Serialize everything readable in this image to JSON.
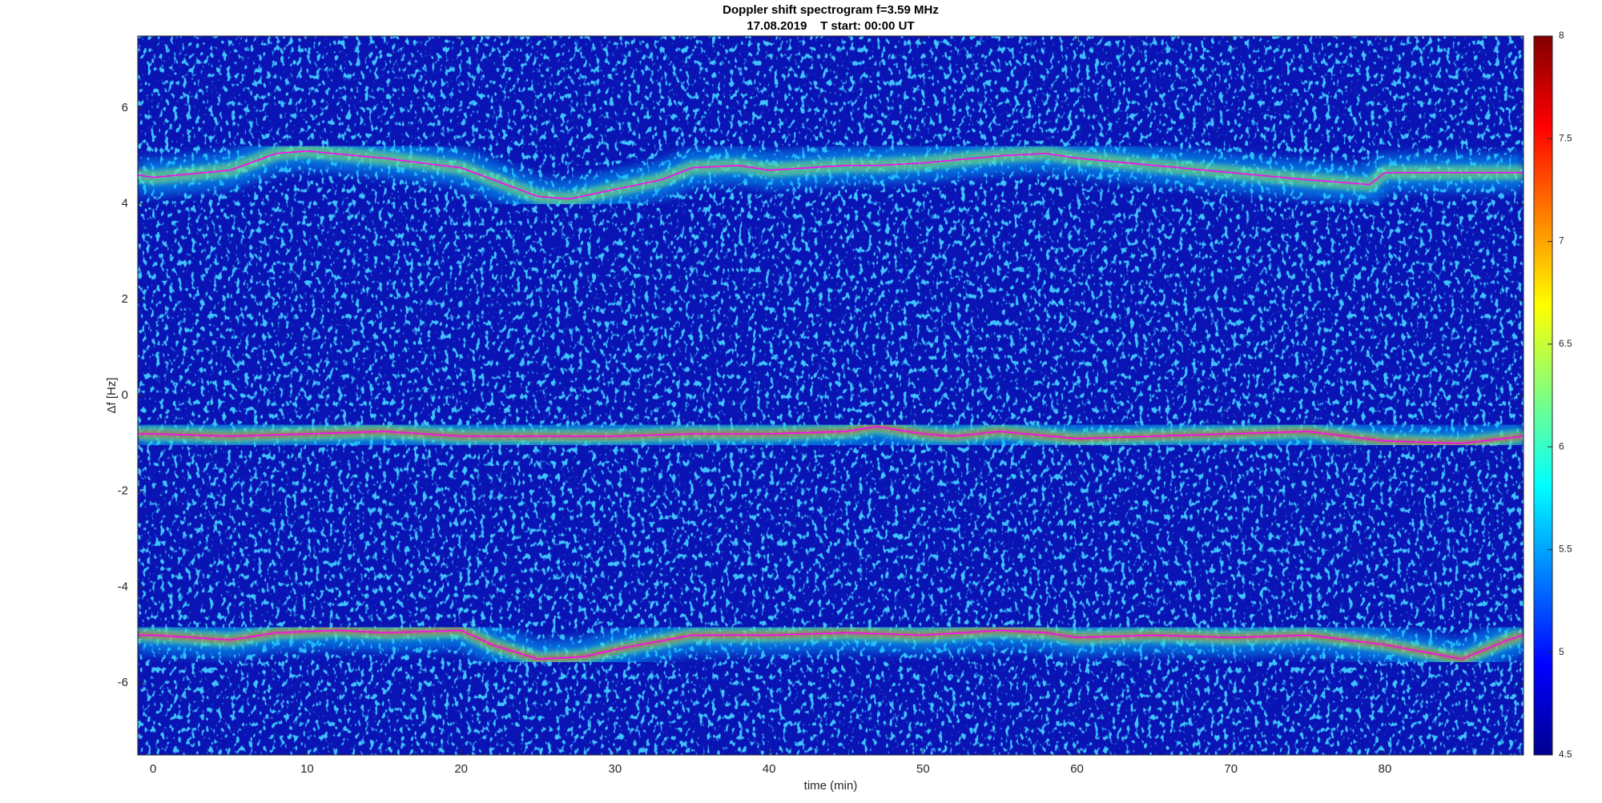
{
  "chart_data": {
    "type": "spectrogram",
    "title": "Doppler shift spectrogram f=3.59 MHz",
    "subtitle": "17.08.2019    T start: 00:00 UT",
    "x_label": "time (min)",
    "y_label": "Δf [Hz]",
    "xlim": [
      -1,
      89
    ],
    "xticks": [
      0,
      10,
      20,
      30,
      40,
      50,
      60,
      70,
      80
    ],
    "ylim": [
      -7.5,
      7.5
    ],
    "yticks": [
      -6,
      -4,
      -2,
      0,
      2,
      4,
      6
    ],
    "clim": [
      4.5,
      8
    ],
    "cticks": [
      4.5,
      5,
      5.5,
      6,
      6.5,
      7,
      7.5,
      8
    ],
    "colormap": "jet",
    "series": [
      {
        "color": "#ff00ff",
        "x": [
          -1,
          0,
          5,
          8,
          10,
          15,
          20,
          25,
          27,
          30,
          33,
          35,
          38,
          40,
          45,
          47,
          50,
          55,
          58,
          60,
          65,
          70,
          75,
          79,
          80,
          85,
          89
        ],
        "values": [
          4.6,
          4.55,
          4.7,
          5.05,
          5.1,
          4.95,
          4.75,
          4.15,
          4.1,
          4.3,
          4.5,
          4.75,
          4.8,
          4.7,
          4.8,
          4.8,
          4.85,
          5.0,
          5.05,
          4.95,
          4.8,
          4.65,
          4.5,
          4.4,
          4.65,
          4.65,
          4.65
        ]
      },
      {
        "color": "#ff00ff",
        "x": [
          -1,
          0,
          5,
          10,
          15,
          20,
          25,
          30,
          35,
          40,
          45,
          47,
          50,
          52,
          55,
          60,
          65,
          70,
          75,
          80,
          85,
          89
        ],
        "values": [
          -0.8,
          -0.8,
          -0.85,
          -0.8,
          -0.75,
          -0.85,
          -0.85,
          -0.85,
          -0.8,
          -0.8,
          -0.75,
          -0.65,
          -0.8,
          -0.85,
          -0.75,
          -0.9,
          -0.85,
          -0.8,
          -0.75,
          -0.95,
          -1.0,
          -0.85
        ]
      },
      {
        "color": "#ff00ff",
        "x": [
          -1,
          0,
          5,
          8,
          12,
          15,
          20,
          22,
          25,
          28,
          30,
          35,
          40,
          45,
          50,
          55,
          58,
          60,
          65,
          70,
          75,
          80,
          85,
          88,
          89
        ],
        "values": [
          -5.0,
          -5.0,
          -5.1,
          -4.95,
          -4.9,
          -4.95,
          -4.9,
          -5.2,
          -5.5,
          -5.45,
          -5.3,
          -5.0,
          -5.0,
          -4.95,
          -5.0,
          -4.9,
          -4.95,
          -5.05,
          -5.0,
          -5.05,
          -5.0,
          -5.2,
          -5.5,
          -5.1,
          -5.0
        ]
      }
    ]
  }
}
